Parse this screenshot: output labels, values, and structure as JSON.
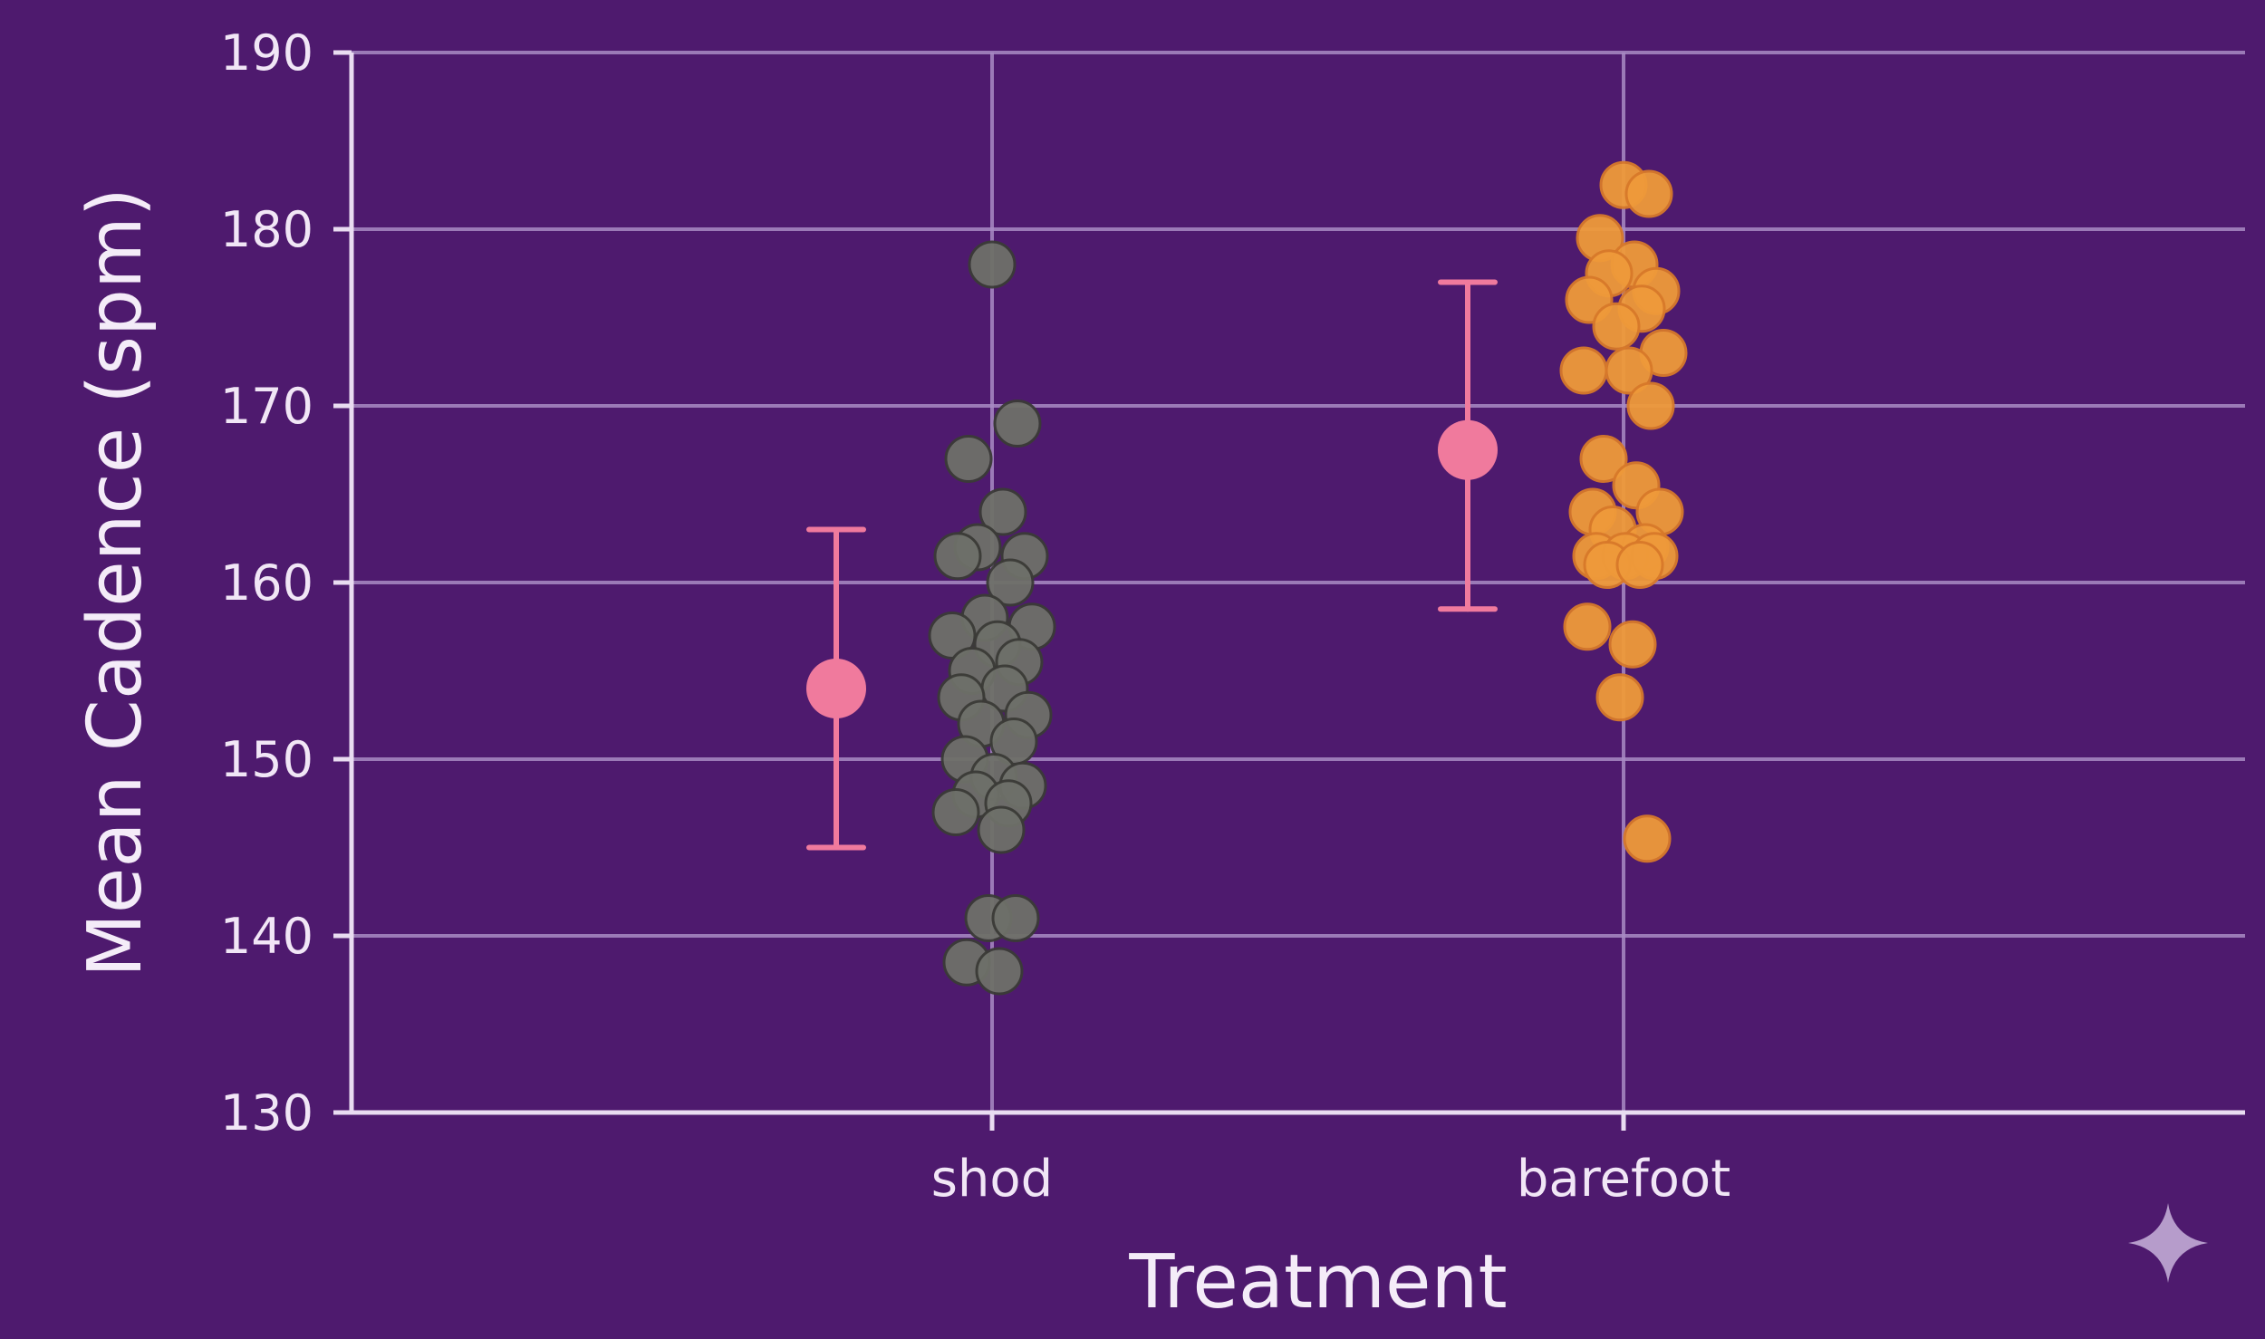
{
  "chart_data": {
    "type": "scatter",
    "xlabel": "Treatment",
    "ylabel": "Mean Cadence (spm)",
    "ylim": [
      130,
      190
    ],
    "yticks": [
      "130",
      "140",
      "150",
      "160",
      "170",
      "180",
      "190"
    ],
    "categories": [
      "shod",
      "barefoot"
    ],
    "grid": true,
    "series": [
      {
        "category": "shod",
        "color": "#6e7069",
        "points": [
          178,
          169,
          167,
          164,
          162,
          161.5,
          161.5,
          160,
          158,
          157.5,
          157,
          156.5,
          155.5,
          155,
          154,
          153.5,
          152.5,
          152,
          151,
          150,
          149,
          148.5,
          148,
          147.5,
          147,
          146,
          141,
          141,
          138.5,
          138
        ],
        "mean": 154,
        "error_low": 145,
        "error_high": 163
      },
      {
        "category": "barefoot",
        "color": "#ef9a3a",
        "points": [
          182.5,
          182,
          179.5,
          178,
          177.5,
          176.5,
          176,
          175.5,
          174.5,
          173,
          172,
          172,
          170,
          167,
          165.5,
          164,
          164,
          163,
          162,
          161.5,
          161.5,
          161.5,
          161,
          161,
          157.5,
          156.5,
          153.5,
          145.5
        ],
        "mean": 167.5,
        "error_low": 158.5,
        "error_high": 177
      }
    ],
    "summary_color": "#f07a9d"
  },
  "decor": {
    "sparkle_icon": "sparkle-icon"
  }
}
